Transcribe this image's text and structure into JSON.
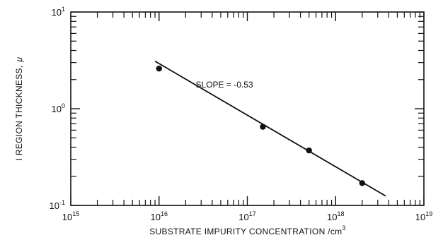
{
  "chart_data": {
    "type": "scatter",
    "title": "",
    "xlabel": "SUBSTRATE IMPURITY CONCENTRATION /",
    "xlabel_unit_base": "cm",
    "xlabel_unit_exp": "3",
    "ylabel_main": "I REGION THICKNESS,",
    "ylabel_symbol": "μ",
    "x_scale": "log",
    "y_scale": "log",
    "xlim": [
      1000000000000000.0,
      1e+19
    ],
    "ylim": [
      0.1,
      10
    ],
    "x_ticks": [
      {
        "base": "10",
        "exp": "15",
        "value": 1000000000000000.0
      },
      {
        "base": "10",
        "exp": "16",
        "value": 1e+16
      },
      {
        "base": "10",
        "exp": "17",
        "value": 1e+17
      },
      {
        "base": "10",
        "exp": "18",
        "value": 1e+18
      },
      {
        "base": "10",
        "exp": "19",
        "value": 1e+19
      }
    ],
    "y_ticks": [
      {
        "base": "10",
        "exp": "-1",
        "value": 0.1
      },
      {
        "base": "10",
        "exp": "0",
        "value": 1
      },
      {
        "base": "10",
        "exp": "1",
        "value": 10
      }
    ],
    "grid": false,
    "series": [
      {
        "points": [
          {
            "x": 1e+16,
            "y": 2.6
          },
          {
            "x": 1.5e+17,
            "y": 0.65
          },
          {
            "x": 5e+17,
            "y": 0.37
          },
          {
            "x": 2e+18,
            "y": 0.17
          }
        ],
        "fit_line": {
          "x": [
            9000000000000000.0,
            3.7e+18
          ],
          "y": [
            3.1,
            0.125
          ]
        }
      }
    ],
    "annotations": [
      {
        "text": "SLOPE = -0.53",
        "x": 2.6e+16,
        "y": 1.65
      }
    ]
  }
}
